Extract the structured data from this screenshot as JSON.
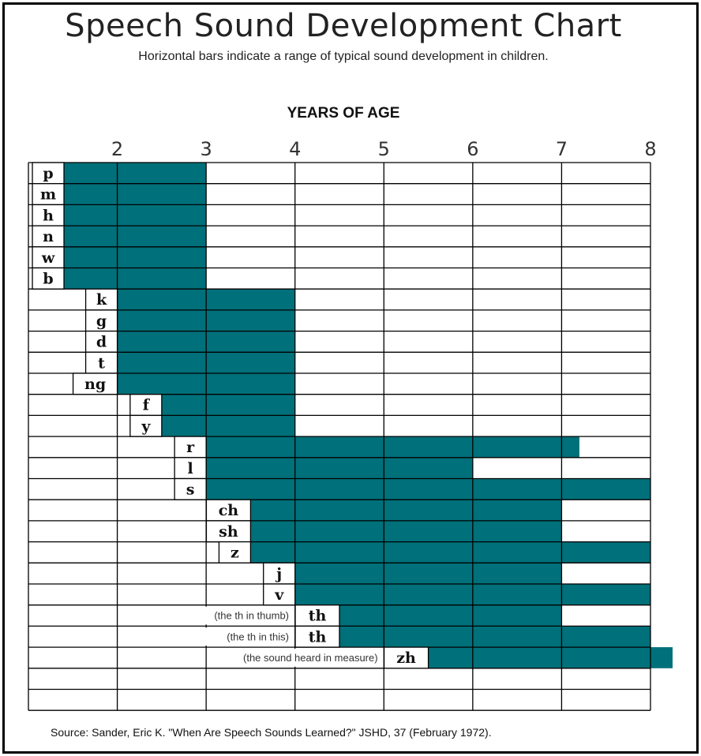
{
  "title": "Speech Sound Development Chart",
  "subtitle": "Horizontal bars indicate a range of typical sound development in children.",
  "source": "Source:  Sander, Eric K. \"When Are Speech Sounds Learned?\" JSHD, 37  (February 1972).",
  "colors": {
    "bar": "#00707a",
    "grid": "#000000"
  },
  "chart_data": {
    "type": "bar",
    "orientation": "horizontal-range",
    "title": "Speech Sound Development Chart",
    "subtitle": "Horizontal bars indicate a range of typical sound development in children.",
    "xlabel": "YEARS OF AGE",
    "x_ticks": [
      2,
      3,
      4,
      5,
      6,
      7,
      8
    ],
    "grid": true,
    "rows": [
      {
        "sound": "p",
        "note": "",
        "start": 1.4,
        "end": 3
      },
      {
        "sound": "m",
        "note": "",
        "start": 1.4,
        "end": 3
      },
      {
        "sound": "h",
        "note": "",
        "start": 1.4,
        "end": 3
      },
      {
        "sound": "n",
        "note": "",
        "start": 1.4,
        "end": 3
      },
      {
        "sound": "w",
        "note": "",
        "start": 1.4,
        "end": 3
      },
      {
        "sound": "b",
        "note": "",
        "start": 1.4,
        "end": 3
      },
      {
        "sound": "k",
        "note": "",
        "start": 2,
        "end": 4
      },
      {
        "sound": "g",
        "note": "",
        "start": 2,
        "end": 4
      },
      {
        "sound": "d",
        "note": "",
        "start": 2,
        "end": 4
      },
      {
        "sound": "t",
        "note": "",
        "start": 2,
        "end": 4
      },
      {
        "sound": "ng",
        "note": "",
        "start": 2,
        "end": 4
      },
      {
        "sound": "f",
        "note": "",
        "start": 2.5,
        "end": 4
      },
      {
        "sound": "y",
        "note": "",
        "start": 2.5,
        "end": 4
      },
      {
        "sound": "r",
        "note": "",
        "start": 3,
        "end": 7.2
      },
      {
        "sound": "l",
        "note": "",
        "start": 3,
        "end": 6
      },
      {
        "sound": "s",
        "note": "",
        "start": 3,
        "end": 8
      },
      {
        "sound": "ch",
        "note": "",
        "start": 3.5,
        "end": 7
      },
      {
        "sound": "sh",
        "note": "",
        "start": 3.5,
        "end": 7
      },
      {
        "sound": "z",
        "note": "",
        "start": 3.5,
        "end": 8
      },
      {
        "sound": "j",
        "note": "",
        "start": 4,
        "end": 7
      },
      {
        "sound": "v",
        "note": "",
        "start": 4,
        "end": 8
      },
      {
        "sound": "th",
        "note": "(the th in thumb)",
        "start": 4.5,
        "end": 7
      },
      {
        "sound": "th",
        "note": "(the th in this)",
        "start": 4.5,
        "end": 8
      },
      {
        "sound": "zh",
        "note": "(the sound heard in measure)",
        "start": 5.5,
        "end": 8.25
      }
    ]
  }
}
